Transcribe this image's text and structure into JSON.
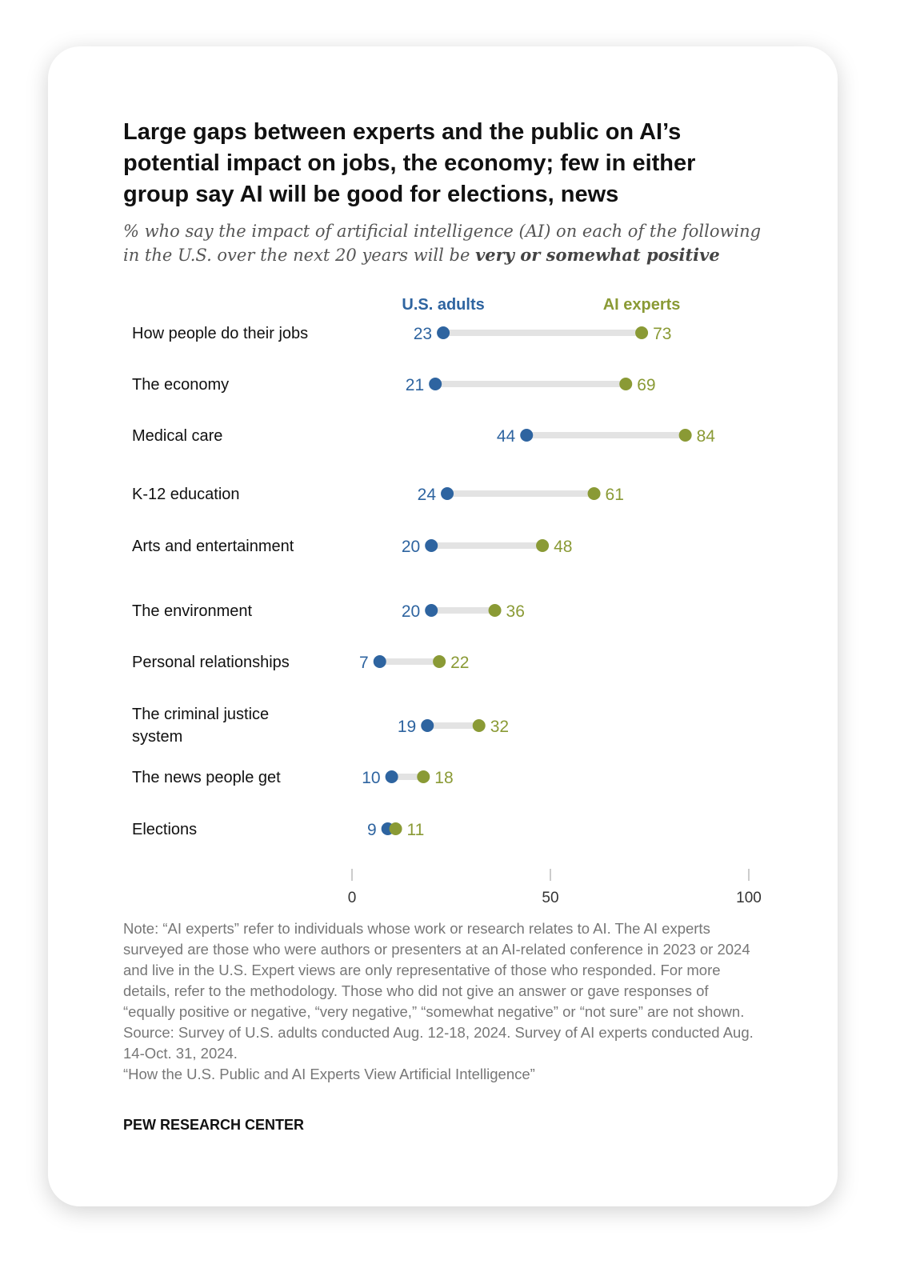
{
  "title": "Large gaps between experts and the public on AI’s potential impact on jobs, the economy; few in either group say AI will be good for elections, news",
  "subtitle": {
    "text": "% who say the impact of artificial intelligence (AI) on each of the following in the U.S. over the next 20 years will be ",
    "emphasis": "very or somewhat positive"
  },
  "chart_data": {
    "type": "dumbbell",
    "categories": [
      "How people do their jobs",
      "The economy",
      "Medical care",
      "K-12 education",
      "Arts and entertainment",
      "The environment",
      "Personal relationships",
      "The criminal justice system",
      "The news people get",
      "Elections"
    ],
    "series": [
      {
        "name": "U.S. adults",
        "color": "#2e64a0",
        "values": [
          23,
          21,
          44,
          24,
          20,
          20,
          7,
          19,
          10,
          9
        ]
      },
      {
        "name": "AI experts",
        "color": "#8a9a35",
        "values": [
          73,
          69,
          84,
          61,
          48,
          36,
          22,
          32,
          18,
          11
        ]
      }
    ],
    "xlim": [
      0,
      100
    ],
    "xticks": [
      "0",
      "50",
      "100"
    ],
    "grid": false,
    "legend": "top"
  },
  "notes": {
    "note": "Note: “AI experts” refer to individuals whose work or research relates to AI. The AI experts surveyed are those who were authors or presenters at an AI-related conference in 2023 or 2024 and live in the U.S. Expert views are only representative of those who responded. For more details, refer to the methodology. Those who did not give an answer or gave responses of “equally positive or negative, “very negative,” “somewhat negative” or “not sure” are not shown.",
    "source": "Source: Survey of U.S. adults conducted Aug. 12-18, 2024. Survey of AI experts conducted Aug. 14-Oct. 31, 2024.",
    "report": "“How the U.S. Public and AI Experts View Artificial Intelligence”"
  },
  "brand": "PEW RESEARCH CENTER"
}
